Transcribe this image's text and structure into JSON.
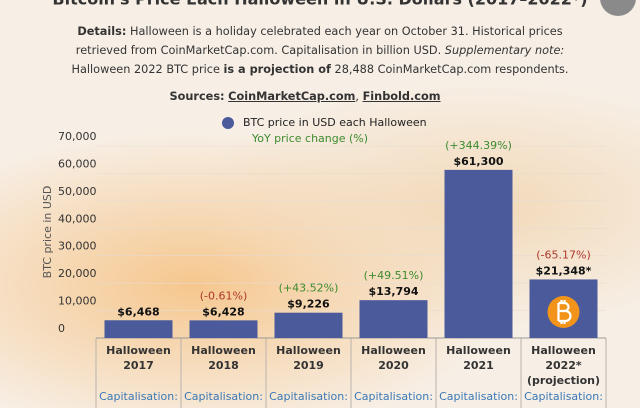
{
  "chart_data": {
    "type": "bar",
    "title": "Bitcoin's Price Each Halloween in U.S. Dollars (2017–2022*)",
    "details": [
      {
        "text": "Details:",
        "style": "bold"
      },
      {
        "text": " Halloween is a holiday celebrated each year on October 31. Historical prices retrieved from CoinMarketCap.com. Capitalisation in billion USD. ",
        "style": "normal"
      },
      {
        "text": "Supplementary note:",
        "style": "italic"
      },
      {
        "text": " Halloween 2022 BTC price ",
        "style": "normal"
      },
      {
        "text": "is a projection of",
        "style": "bold"
      },
      {
        "text": " 28,488 CoinMarketCap.com respondents.",
        "style": "normal"
      }
    ],
    "sources": [
      {
        "text": "Sources:",
        "style": "bold"
      },
      {
        "text": " ",
        "style": "normal"
      },
      {
        "text": "CoinMarketCap.com",
        "style": "link"
      },
      {
        "text": ", ",
        "style": "normal"
      },
      {
        "text": "Finbold.com",
        "style": "link"
      }
    ],
    "ylabel": "BTC price in USD",
    "categories": [
      "Halloween\n2017",
      "Halloween\n2018",
      "Halloween\n2019",
      "Halloween\n2020",
      "Halloween\n2021",
      "Halloween\n2022*\n(projection)"
    ],
    "series": [
      {
        "name": "BTC price in USD each Halloween",
        "color": "#4b5a9b",
        "values": [
          6468,
          6428,
          9226,
          13794,
          61300,
          21348
        ],
        "value_labels": [
          "$6,468",
          "$6,428",
          "$9,226",
          "$13,794",
          "$61,300",
          "$21,348*"
        ]
      }
    ],
    "yoy": {
      "name": "YoY price change (%)",
      "positive_color": "#3d8b2f",
      "negative_color": "#b0392b",
      "values": [
        null,
        -0.61,
        43.52,
        49.51,
        344.39,
        -65.17
      ],
      "value_labels": [
        null,
        "(-0.61%)",
        "(+43.52%)",
        "(+49.51%)",
        "(+344.39%)",
        "(-65.17%)"
      ]
    },
    "capitalisation_labels": [
      "Capitalisation:",
      "Capitalisation:",
      "Capitalisation:",
      "Capitalisation:",
      "Capitalisation:",
      "Capitalisation:"
    ],
    "ylim": [
      0,
      70000
    ],
    "yticks": [
      0,
      {
        "value": 10000,
        "label": "10,000"
      },
      {
        "value": 20000,
        "label": "20,000"
      },
      {
        "value": 30000,
        "label": "30,000"
      },
      {
        "value": 40000,
        "label": "40,000"
      },
      {
        "value": 50000,
        "label": "50,000"
      },
      {
        "value": 60000,
        "label": "60,000"
      },
      {
        "value": 70000,
        "label": "70,000"
      }
    ],
    "grid": true
  }
}
